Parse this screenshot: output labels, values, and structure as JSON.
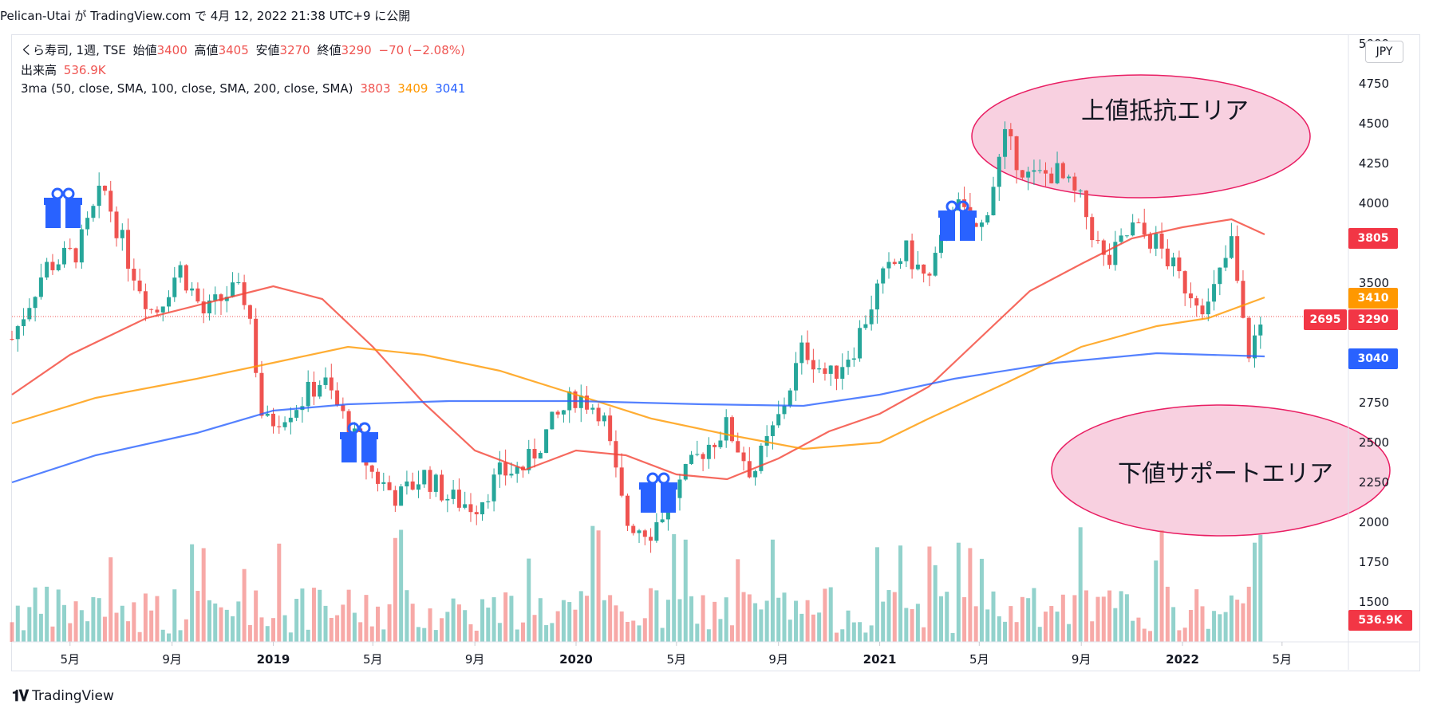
{
  "header": {
    "text": "Pelican-Utai が TradingView.com で 4月 12, 2022 21:38 UTC+9 に公開"
  },
  "legend": {
    "symbol": "くら寿司, 1週, TSE",
    "open_label": "始値",
    "open": "3400",
    "high_label": "高値",
    "high": "3405",
    "low_label": "安値",
    "low": "3270",
    "close_label": "終値",
    "close": "3290",
    "change": "−70 (−2.08%)",
    "volume_label": "出来高",
    "volume": "536.9K",
    "ma_label": "3ma (50, close, SMA, 100, close, SMA, 200, close, SMA)",
    "ma50": "3803",
    "ma100": "3409",
    "ma200": "3041"
  },
  "currency": "JPY",
  "price_tags": {
    "ma50": "3805",
    "ma100": "3410",
    "close": "3290",
    "crosshair": "2695",
    "ma200": "3040",
    "volume": "536.9K"
  },
  "annotations": {
    "upper": "上値抵抗エリア",
    "lower": "下値サポートエリア"
  },
  "footer": {
    "brand": "TradingView",
    "logo": "tradingview-logo"
  },
  "colors": {
    "up": "#26a69a",
    "down": "#ef5350",
    "ma50": "#f44336",
    "ma100": "#ff9800",
    "ma200": "#2962ff",
    "ellipse_fill": "#f8d0e0",
    "ellipse_stroke": "#e91e63",
    "gift": "#2962ff"
  },
  "chart_data": {
    "type": "candlestick",
    "symbol": "くら寿司",
    "interval": "1週",
    "exchange": "TSE",
    "y_axis": {
      "ticks": [
        1500,
        1750,
        2000,
        2250,
        2500,
        2750,
        3000,
        3250,
        3500,
        3750,
        4000,
        4250,
        4500,
        4750,
        5000
      ],
      "ylim": [
        1250,
        5050
      ]
    },
    "x_axis": {
      "ticks": [
        {
          "label": "5月",
          "date": "2018-05"
        },
        {
          "label": "9月",
          "date": "2018-09"
        },
        {
          "label": "2019",
          "date": "2019-01"
        },
        {
          "label": "5月",
          "date": "2019-05"
        },
        {
          "label": "9月",
          "date": "2019-09"
        },
        {
          "label": "2020",
          "date": "2020-01"
        },
        {
          "label": "5月",
          "date": "2020-05"
        },
        {
          "label": "9月",
          "date": "2020-09"
        },
        {
          "label": "2021",
          "date": "2021-01"
        },
        {
          "label": "5月",
          "date": "2021-05"
        },
        {
          "label": "9月",
          "date": "2021-09"
        },
        {
          "label": "2022",
          "date": "2022-01"
        },
        {
          "label": "5月",
          "date": "2022-05"
        }
      ],
      "xlim": [
        "2018-02-20",
        "2022-07-20"
      ]
    },
    "close_path": [
      [
        "2018-02-20",
        3150
      ],
      [
        "2018-04-01",
        3600
      ],
      [
        "2018-05-10",
        3700
      ],
      [
        "2018-06-10",
        4100
      ],
      [
        "2018-07-10",
        3650
      ],
      [
        "2018-08-10",
        3300
      ],
      [
        "2018-09-10",
        3600
      ],
      [
        "2018-10-10",
        3300
      ],
      [
        "2018-11-10",
        3450
      ],
      [
        "2018-12-01",
        3400
      ],
      [
        "2018-12-20",
        2600
      ],
      [
        "2019-02-01",
        2750
      ],
      [
        "2019-03-01",
        2900
      ],
      [
        "2019-04-01",
        2600
      ],
      [
        "2019-05-01",
        2300
      ],
      [
        "2019-06-01",
        2150
      ],
      [
        "2019-07-01",
        2300
      ],
      [
        "2019-08-01",
        2150
      ],
      [
        "2019-09-01",
        2100
      ],
      [
        "2019-10-01",
        2300
      ],
      [
        "2019-11-01",
        2350
      ],
      [
        "2019-12-01",
        2600
      ],
      [
        "2020-01-01",
        2800
      ],
      [
        "2020-02-01",
        2700
      ],
      [
        "2020-03-01",
        2000
      ],
      [
        "2020-04-01",
        1950
      ],
      [
        "2020-05-01",
        2200
      ],
      [
        "2020-06-01",
        2450
      ],
      [
        "2020-07-01",
        2600
      ],
      [
        "2020-08-01",
        2300
      ],
      [
        "2020-09-01",
        2650
      ],
      [
        "2020-10-01",
        3100
      ],
      [
        "2020-11-01",
        2900
      ],
      [
        "2020-12-01",
        3100
      ],
      [
        "2021-01-01",
        3500
      ],
      [
        "2021-02-01",
        3700
      ],
      [
        "2021-03-01",
        3500
      ],
      [
        "2021-04-01",
        4000
      ],
      [
        "2021-05-01",
        3800
      ],
      [
        "2021-06-01",
        4400
      ],
      [
        "2021-07-01",
        4150
      ],
      [
        "2021-08-01",
        4200
      ],
      [
        "2021-09-01",
        4000
      ],
      [
        "2021-10-01",
        3600
      ],
      [
        "2021-11-01",
        3850
      ],
      [
        "2021-12-01",
        3750
      ],
      [
        "2022-01-01",
        3500
      ],
      [
        "2022-02-01",
        3350
      ],
      [
        "2022-03-01",
        3750
      ],
      [
        "2022-03-20",
        3050
      ],
      [
        "2022-04-10",
        3290
      ]
    ],
    "series": [
      {
        "name": "50",
        "type": "line",
        "values": [
          [
            "2018-02-20",
            2800
          ],
          [
            "2018-05-01",
            3050
          ],
          [
            "2018-08-01",
            3280
          ],
          [
            "2018-11-01",
            3400
          ],
          [
            "2019-01-01",
            3480
          ],
          [
            "2019-03-01",
            3400
          ],
          [
            "2019-05-01",
            3100
          ],
          [
            "2019-07-01",
            2750
          ],
          [
            "2019-09-01",
            2450
          ],
          [
            "2019-11-01",
            2330
          ],
          [
            "2020-01-01",
            2450
          ],
          [
            "2020-03-01",
            2420
          ],
          [
            "2020-05-01",
            2300
          ],
          [
            "2020-07-01",
            2270
          ],
          [
            "2020-09-01",
            2400
          ],
          [
            "2020-11-01",
            2570
          ],
          [
            "2021-01-01",
            2680
          ],
          [
            "2021-03-01",
            2850
          ],
          [
            "2021-05-01",
            3150
          ],
          [
            "2021-07-01",
            3450
          ],
          [
            "2021-09-01",
            3620
          ],
          [
            "2021-11-01",
            3780
          ],
          [
            "2022-01-01",
            3850
          ],
          [
            "2022-03-01",
            3900
          ],
          [
            "2022-04-10",
            3805
          ]
        ]
      },
      {
        "name": "100",
        "type": "line",
        "values": [
          [
            "2018-02-20",
            2620
          ],
          [
            "2018-06-01",
            2780
          ],
          [
            "2018-10-01",
            2900
          ],
          [
            "2019-01-01",
            3000
          ],
          [
            "2019-04-01",
            3100
          ],
          [
            "2019-07-01",
            3050
          ],
          [
            "2019-10-01",
            2950
          ],
          [
            "2020-01-01",
            2800
          ],
          [
            "2020-04-01",
            2650
          ],
          [
            "2020-07-01",
            2550
          ],
          [
            "2020-10-01",
            2460
          ],
          [
            "2021-01-01",
            2500
          ],
          [
            "2021-03-01",
            2650
          ],
          [
            "2021-06-01",
            2870
          ],
          [
            "2021-09-01",
            3100
          ],
          [
            "2021-12-01",
            3230
          ],
          [
            "2022-02-01",
            3280
          ],
          [
            "2022-04-10",
            3410
          ]
        ]
      },
      {
        "name": "200",
        "type": "line",
        "values": [
          [
            "2018-02-20",
            2250
          ],
          [
            "2018-06-01",
            2420
          ],
          [
            "2018-10-01",
            2560
          ],
          [
            "2019-01-01",
            2700
          ],
          [
            "2019-04-01",
            2740
          ],
          [
            "2019-08-01",
            2760
          ],
          [
            "2020-01-01",
            2760
          ],
          [
            "2020-06-01",
            2740
          ],
          [
            "2020-10-01",
            2730
          ],
          [
            "2021-01-01",
            2800
          ],
          [
            "2021-04-01",
            2900
          ],
          [
            "2021-08-01",
            3000
          ],
          [
            "2021-12-01",
            3060
          ],
          [
            "2022-04-10",
            3040
          ]
        ]
      }
    ],
    "volume": {
      "last": "536.9K"
    }
  }
}
